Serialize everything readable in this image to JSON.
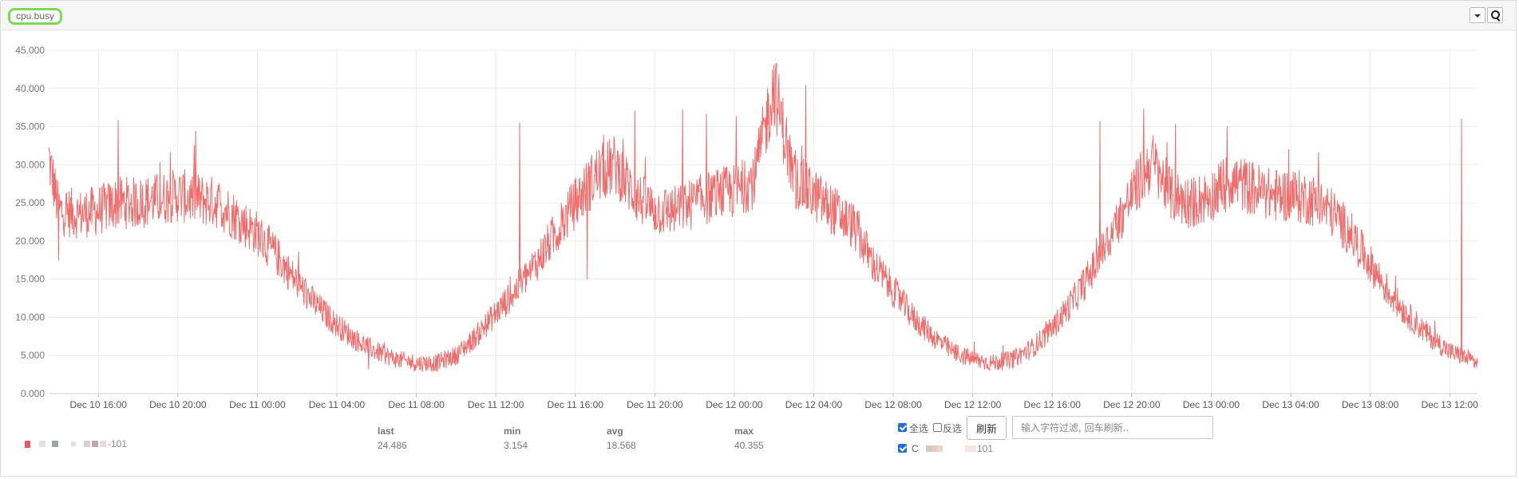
{
  "panel": {
    "title": "cpu.busy",
    "dropdown_icon": "caret-down-icon",
    "zoom_icon": "magnifier-icon"
  },
  "colors": {
    "series": "#f26b6b",
    "grid": "#ececec",
    "title_outline": "#7ed957"
  },
  "chart_data": {
    "type": "line",
    "title": "cpu.busy",
    "xlabel": "",
    "ylabel": "",
    "ylim": [
      0,
      45
    ],
    "y_ticks": [
      "0.000",
      "5.000",
      "10.000",
      "15.000",
      "20.000",
      "25.000",
      "30.000",
      "35.000",
      "40.000",
      "45.000"
    ],
    "x_range_hours": [
      -2.5,
      69.4
    ],
    "x_ticks": [
      {
        "label": "Dec 10 16:00",
        "h": 0
      },
      {
        "label": "Dec 10 20:00",
        "h": 4
      },
      {
        "label": "Dec 11 00:00",
        "h": 8
      },
      {
        "label": "Dec 11 04:00",
        "h": 12
      },
      {
        "label": "Dec 11 08:00",
        "h": 16
      },
      {
        "label": "Dec 11 12:00",
        "h": 20
      },
      {
        "label": "Dec 11 16:00",
        "h": 24
      },
      {
        "label": "Dec 11 20:00",
        "h": 28
      },
      {
        "label": "Dec 12 00:00",
        "h": 32
      },
      {
        "label": "Dec 12 04:00",
        "h": 36
      },
      {
        "label": "Dec 12 08:00",
        "h": 40
      },
      {
        "label": "Dec 12 12:00",
        "h": 44
      },
      {
        "label": "Dec 12 16:00",
        "h": 48
      },
      {
        "label": "Dec 12 20:00",
        "h": 52
      },
      {
        "label": "Dec 13 00:00",
        "h": 56
      },
      {
        "label": "Dec 13 04:00",
        "h": 60
      },
      {
        "label": "Dec 13 08:00",
        "h": 64
      },
      {
        "label": "Dec 13 12:00",
        "h": 68
      }
    ],
    "grid": true,
    "series": [
      {
        "name": "C",
        "x": [
          -2.5,
          -2.0,
          -1.0,
          0.0,
          1.0,
          2.0,
          3.0,
          4.0,
          5.0,
          6.0,
          7.0,
          8.0,
          9.0,
          10.0,
          11.0,
          12.0,
          13.0,
          14.0,
          15.0,
          16.0,
          17.0,
          18.0,
          19.0,
          20.0,
          21.0,
          22.0,
          23.0,
          24.0,
          25.0,
          26.0,
          27.0,
          28.0,
          29.0,
          30.0,
          31.0,
          32.0,
          33.0,
          34.0,
          35.0,
          36.0,
          37.0,
          38.0,
          39.0,
          40.0,
          41.0,
          42.0,
          43.0,
          44.0,
          45.0,
          46.0,
          47.0,
          48.0,
          49.0,
          50.0,
          51.0,
          52.0,
          53.0,
          54.0,
          55.0,
          56.0,
          57.0,
          58.0,
          59.0,
          60.0,
          61.0,
          62.0,
          63.0,
          64.0,
          65.0,
          66.0,
          67.0,
          68.0,
          69.0,
          69.4
        ],
        "values": [
          31.0,
          24.0,
          23.5,
          24.0,
          25.0,
          25.0,
          25.5,
          26.0,
          25.5,
          25.0,
          23.0,
          21.0,
          18.0,
          14.5,
          11.5,
          9.0,
          7.0,
          5.5,
          4.5,
          4.0,
          4.0,
          5.0,
          7.5,
          10.5,
          13.5,
          17.0,
          21.0,
          25.0,
          28.5,
          30.0,
          26.0,
          24.0,
          24.0,
          25.0,
          26.0,
          26.5,
          28.0,
          40.4,
          28.0,
          26.0,
          24.0,
          22.0,
          17.0,
          13.5,
          10.0,
          7.5,
          5.5,
          4.5,
          4.0,
          4.5,
          6.0,
          8.5,
          12.0,
          16.0,
          21.0,
          26.0,
          30.5,
          26.0,
          25.0,
          26.0,
          28.0,
          27.0,
          26.0,
          26.0,
          25.5,
          24.0,
          21.0,
          17.0,
          13.0,
          10.0,
          7.5,
          5.5,
          4.5,
          4.0
        ],
        "peaks": [
          {
            "h": -2.4,
            "v": 31.0
          },
          {
            "h": -2.0,
            "v": 17.5
          },
          {
            "h": 1.0,
            "v": 35.8
          },
          {
            "h": 4.9,
            "v": 34.4
          },
          {
            "h": 13.6,
            "v": 3.2
          },
          {
            "h": 21.2,
            "v": 35.5
          },
          {
            "h": 24.6,
            "v": 15.0
          },
          {
            "h": 27.0,
            "v": 37.0
          },
          {
            "h": 29.4,
            "v": 37.2
          },
          {
            "h": 30.6,
            "v": 36.6
          },
          {
            "h": 32.1,
            "v": 36.3
          },
          {
            "h": 35.6,
            "v": 40.4
          },
          {
            "h": 50.4,
            "v": 35.7
          },
          {
            "h": 52.6,
            "v": 37.3
          },
          {
            "h": 54.2,
            "v": 35.3
          },
          {
            "h": 56.8,
            "v": 35.0
          },
          {
            "h": 68.6,
            "v": 36.0
          }
        ]
      }
    ]
  },
  "legend": {
    "series_label": "-101",
    "series_label_right": "C",
    "series_suffix_right": "101"
  },
  "stats": {
    "last_label": "last",
    "last_value": "24.486",
    "min_label": "min",
    "min_value": "3.154",
    "avg_label": "avg",
    "avg_value": "18.568",
    "max_label": "max",
    "max_value": "40.355"
  },
  "filter": {
    "select_all_label": "全选",
    "invert_label": "反选",
    "refresh_label": "刷新",
    "input_placeholder": "输入字符过滤, 回车刷新.."
  }
}
